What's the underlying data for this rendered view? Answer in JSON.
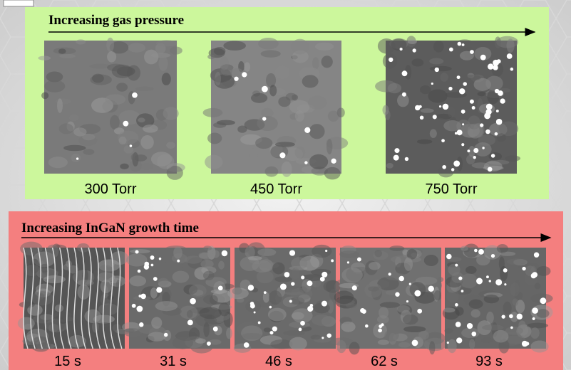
{
  "top_panel": {
    "heading": "Increasing gas pressure",
    "images": [
      {
        "label": "300 Torr"
      },
      {
        "label": "450 Torr"
      },
      {
        "label": "750 Torr"
      }
    ]
  },
  "bottom_panel": {
    "heading": "Increasing InGaN growth time",
    "images": [
      {
        "label": "15 s"
      },
      {
        "label": "31 s"
      },
      {
        "label": "46 s"
      },
      {
        "label": "62 s"
      },
      {
        "label": "93 s"
      }
    ]
  }
}
